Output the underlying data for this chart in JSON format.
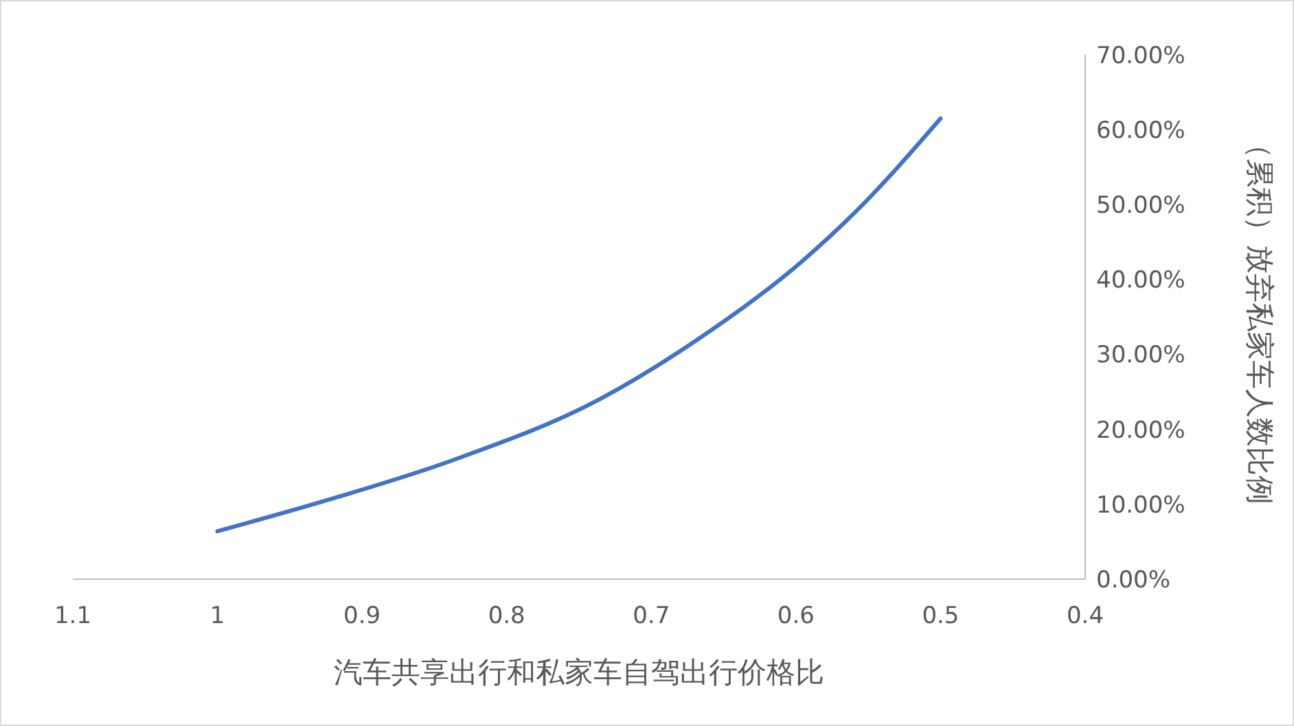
{
  "chart_data": {
    "type": "line",
    "xlabel": "汽车共享出行和私家车自驾出行价格比",
    "ylabel": "（累积）放弃私家车人数比例",
    "x": [
      1,
      0.925,
      0.837,
      0.736,
      0.668,
      0.596,
      0.559,
      0.5
    ],
    "series": [
      {
        "color": "#4472c4",
        "values": [
          6.4,
          10.5,
          15.9,
          24.0,
          32.0,
          42.4,
          49.0,
          61.5
        ]
      }
    ],
    "xlim": [
      1.1,
      0.4
    ],
    "xticks": [
      1.1,
      1,
      0.9,
      0.8,
      0.7,
      0.6,
      0.5,
      0.4
    ],
    "ylim": [
      0,
      70
    ],
    "yticks": [
      {
        "value": 0,
        "label": "0.00%"
      },
      {
        "value": 10,
        "label": "10.00%"
      },
      {
        "value": 20,
        "label": "20.00%"
      },
      {
        "value": 30,
        "label": "30.00%"
      },
      {
        "value": 40,
        "label": "40.00%"
      },
      {
        "value": 50,
        "label": "50.00%"
      },
      {
        "value": 60,
        "label": "60.00%"
      },
      {
        "value": 70,
        "label": "70.00%"
      }
    ],
    "grid": false,
    "marker": "none",
    "line_style": "solid"
  }
}
